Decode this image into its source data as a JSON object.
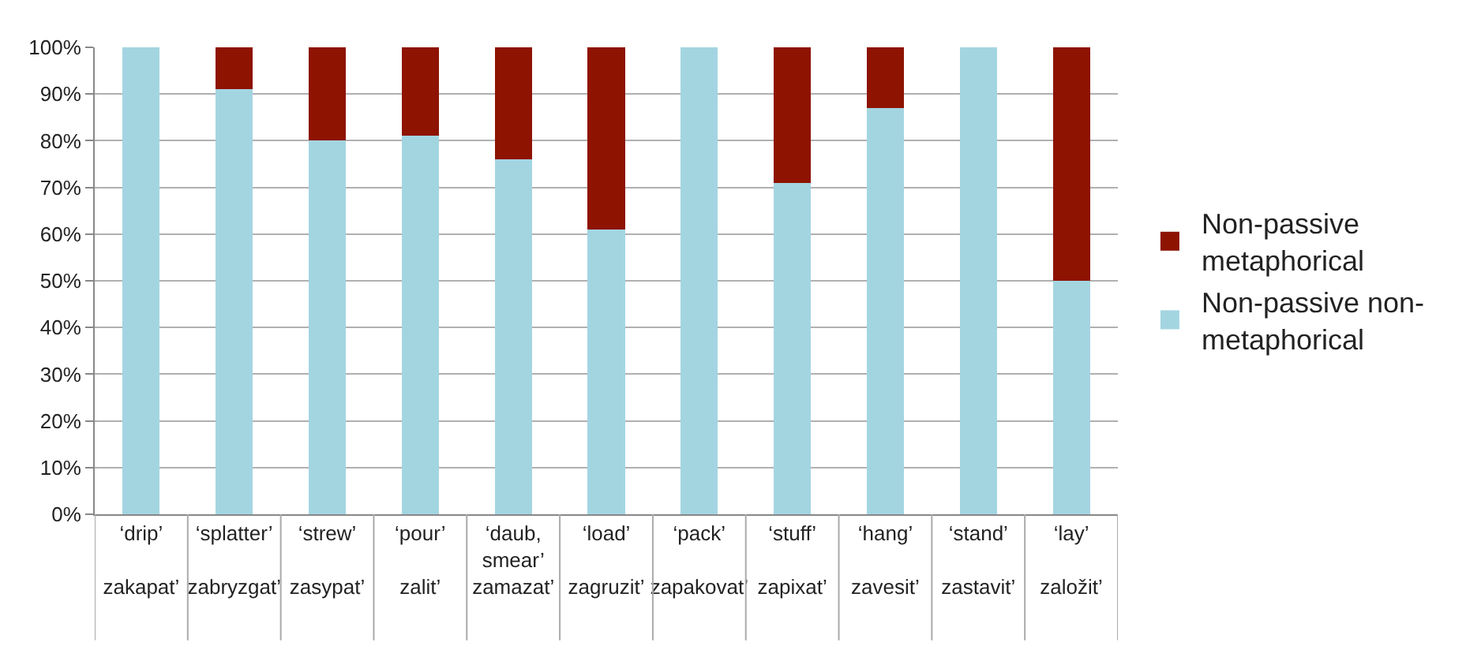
{
  "chart_data": {
    "type": "bar",
    "stacked": true,
    "categories": [
      "‘drip’\n\nzakapat’",
      "‘splatter’\n\nzabryzgat’",
      "‘strew’\n\nzasypat’",
      "‘pour’\n\nzalit’",
      "‘daub,\nsmear’\nzamazat’",
      "‘load’\n\nzagruzit’",
      "‘pack’\n\nzapakovat’",
      "‘stuff’\n\nzapixat’",
      "‘hang’\n\nzavesit’",
      "‘stand’\n\nzastavit’",
      "‘lay’\n\nzaložit’"
    ],
    "series": [
      {
        "name": "Non-passive non-metaphorical",
        "color": "#a3d5e1",
        "values": [
          100,
          91,
          80,
          81,
          76,
          61,
          100,
          71,
          87,
          100,
          50
        ]
      },
      {
        "name": "Non-passive metaphorical",
        "color": "#8e1300",
        "values": [
          0,
          9,
          20,
          19,
          24,
          39,
          0,
          29,
          13,
          0,
          50
        ]
      }
    ],
    "ylim": [
      0,
      100
    ],
    "yticks": [
      {
        "value": 0,
        "label": "0%"
      },
      {
        "value": 10,
        "label": "10%"
      },
      {
        "value": 20,
        "label": "20%"
      },
      {
        "value": 30,
        "label": "30%"
      },
      {
        "value": 40,
        "label": "40%"
      },
      {
        "value": 50,
        "label": "50%"
      },
      {
        "value": 60,
        "label": "60%"
      },
      {
        "value": 70,
        "label": "70%"
      },
      {
        "value": 80,
        "label": "80%"
      },
      {
        "value": 90,
        "label": "90%"
      },
      {
        "value": 100,
        "label": "100%"
      }
    ],
    "grid": "y",
    "legend": "right"
  }
}
